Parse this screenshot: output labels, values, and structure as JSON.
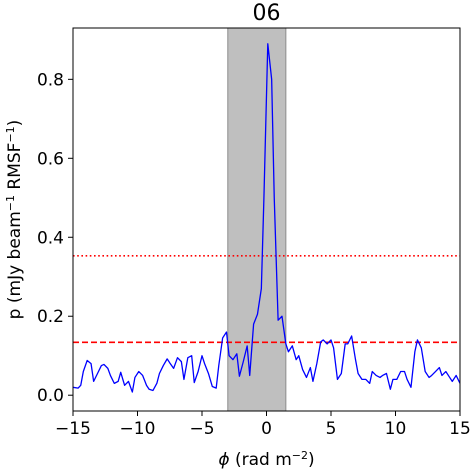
{
  "chart_data": {
    "type": "line",
    "title": "06",
    "xlabel_prefix": "ϕ",
    "xlabel_text": " (rad m",
    "xlabel_sup": "−2",
    "xlabel_suffix": ")",
    "ylabel_text1": "p (mJy beam",
    "ylabel_sup1": "−1",
    "ylabel_text2": " RMSF",
    "ylabel_sup2": "−1",
    "ylabel_suffix": ")",
    "xlim": [
      -15,
      15
    ],
    "ylim": [
      -0.04,
      0.93
    ],
    "xticks": [
      -15,
      -10,
      -5,
      0,
      5,
      10,
      15
    ],
    "xtick_labels": [
      "−15",
      "−10",
      "−5",
      "0",
      "5",
      "10",
      "15"
    ],
    "yticks": [
      0.0,
      0.2,
      0.4,
      0.6,
      0.8
    ],
    "ytick_labels": [
      "0.0",
      "0.2",
      "0.4",
      "0.6",
      "0.8"
    ],
    "grid": false,
    "shaded_band": {
      "x0": -3.0,
      "x1": 1.5,
      "color": "#bfbfbf",
      "edge": "#8c8c8c"
    },
    "hlines": [
      {
        "y": 0.353,
        "style": "dotted",
        "color": "#ff0000"
      },
      {
        "y": 0.134,
        "style": "dashed",
        "color": "#ff0000"
      }
    ],
    "series": [
      {
        "color": "#0000ff",
        "x": [
          -15.0,
          -14.6,
          -14.4,
          -14.2,
          -13.9,
          -13.6,
          -13.4,
          -13.1,
          -12.8,
          -12.6,
          -12.3,
          -12.1,
          -11.8,
          -11.5,
          -11.3,
          -11.0,
          -10.7,
          -10.4,
          -10.2,
          -9.9,
          -9.6,
          -9.3,
          -9.1,
          -8.8,
          -8.5,
          -8.3,
          -8.0,
          -7.7,
          -7.5,
          -7.2,
          -6.9,
          -6.6,
          -6.4,
          -6.1,
          -5.8,
          -5.6,
          -5.3,
          -5.0,
          -4.8,
          -4.5,
          -4.2,
          -3.9,
          -3.7,
          -3.4,
          -3.1,
          -2.9,
          -2.6,
          -2.3,
          -2.1,
          -1.8,
          -1.5,
          -1.3,
          -1.0,
          -0.7,
          -0.4,
          -0.2,
          0.1,
          0.4,
          0.6,
          0.9,
          1.2,
          1.5,
          1.7,
          2.0,
          2.3,
          2.5,
          2.8,
          3.1,
          3.4,
          3.6,
          3.9,
          4.2,
          4.4,
          4.7,
          5.0,
          5.2,
          5.5,
          5.8,
          6.1,
          6.3,
          6.6,
          6.9,
          7.1,
          7.4,
          7.7,
          8.0,
          8.2,
          8.5,
          8.8,
          9.0,
          9.3,
          9.6,
          9.8,
          10.1,
          10.4,
          10.7,
          10.9,
          11.2,
          11.5,
          11.7,
          12.0,
          12.3,
          12.6,
          12.8,
          13.1,
          13.4,
          13.6,
          13.9,
          14.2,
          14.4,
          14.7,
          15.0
        ],
        "y": [
          0.02,
          0.018,
          0.025,
          0.06,
          0.088,
          0.08,
          0.035,
          0.055,
          0.075,
          0.078,
          0.068,
          0.05,
          0.03,
          0.035,
          0.058,
          0.025,
          0.035,
          0.008,
          0.045,
          0.06,
          0.05,
          0.025,
          0.015,
          0.012,
          0.03,
          0.055,
          0.075,
          0.092,
          0.082,
          0.068,
          0.095,
          0.085,
          0.04,
          0.095,
          0.1,
          0.032,
          0.06,
          0.1,
          0.08,
          0.055,
          0.022,
          0.018,
          0.075,
          0.145,
          0.16,
          0.1,
          0.09,
          0.105,
          0.048,
          0.085,
          0.125,
          0.05,
          0.18,
          0.205,
          0.27,
          0.5,
          0.89,
          0.8,
          0.5,
          0.19,
          0.2,
          0.13,
          0.11,
          0.125,
          0.09,
          0.1,
          0.065,
          0.045,
          0.07,
          0.035,
          0.08,
          0.135,
          0.14,
          0.13,
          0.14,
          0.12,
          0.04,
          0.055,
          0.13,
          0.13,
          0.15,
          0.09,
          0.055,
          0.04,
          0.04,
          0.03,
          0.06,
          0.05,
          0.045,
          0.05,
          0.055,
          0.015,
          0.04,
          0.04,
          0.06,
          0.06,
          0.04,
          0.02,
          0.11,
          0.14,
          0.12,
          0.06,
          0.045,
          0.05,
          0.06,
          0.07,
          0.05,
          0.06,
          0.045,
          0.035,
          0.05,
          0.03
        ]
      }
    ]
  }
}
